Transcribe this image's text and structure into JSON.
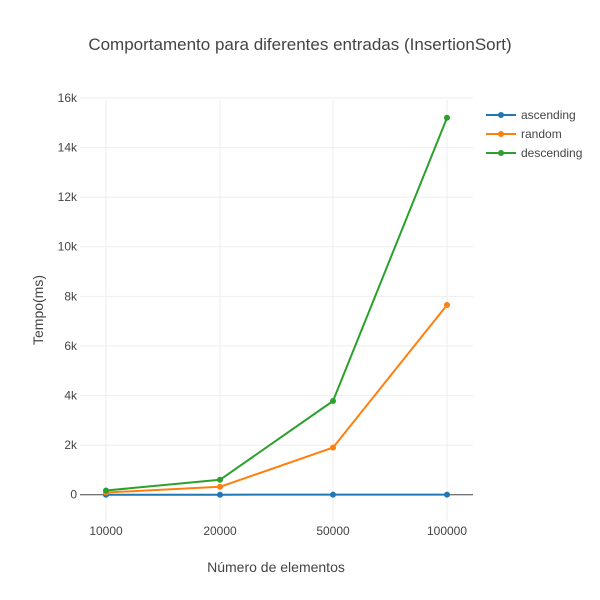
{
  "chart_data": {
    "type": "line",
    "title": "Comportamento para diferentes entradas (InsertionSort)",
    "xlabel": "Número de elementos",
    "ylabel": "Tempo(ms)",
    "categories": [
      "10000",
      "20000",
      "50000",
      "100000"
    ],
    "ylim": [
      -1100,
      16400
    ],
    "y_ticks": [
      0,
      2000,
      4000,
      6000,
      8000,
      10000,
      12000,
      14000,
      16000
    ],
    "y_tick_labels": [
      "0",
      "2k",
      "4k",
      "6k",
      "8k",
      "10k",
      "12k",
      "14k",
      "16k"
    ],
    "grid": true,
    "legend_position": "top-right",
    "series": [
      {
        "name": "ascending",
        "color": "#1f77b4",
        "values": [
          2,
          2,
          3,
          5
        ]
      },
      {
        "name": "random",
        "color": "#ff7f0e",
        "values": [
          90,
          320,
          1900,
          7650
        ]
      },
      {
        "name": "descending",
        "color": "#2ca02c",
        "values": [
          170,
          600,
          3780,
          15200
        ]
      }
    ]
  }
}
